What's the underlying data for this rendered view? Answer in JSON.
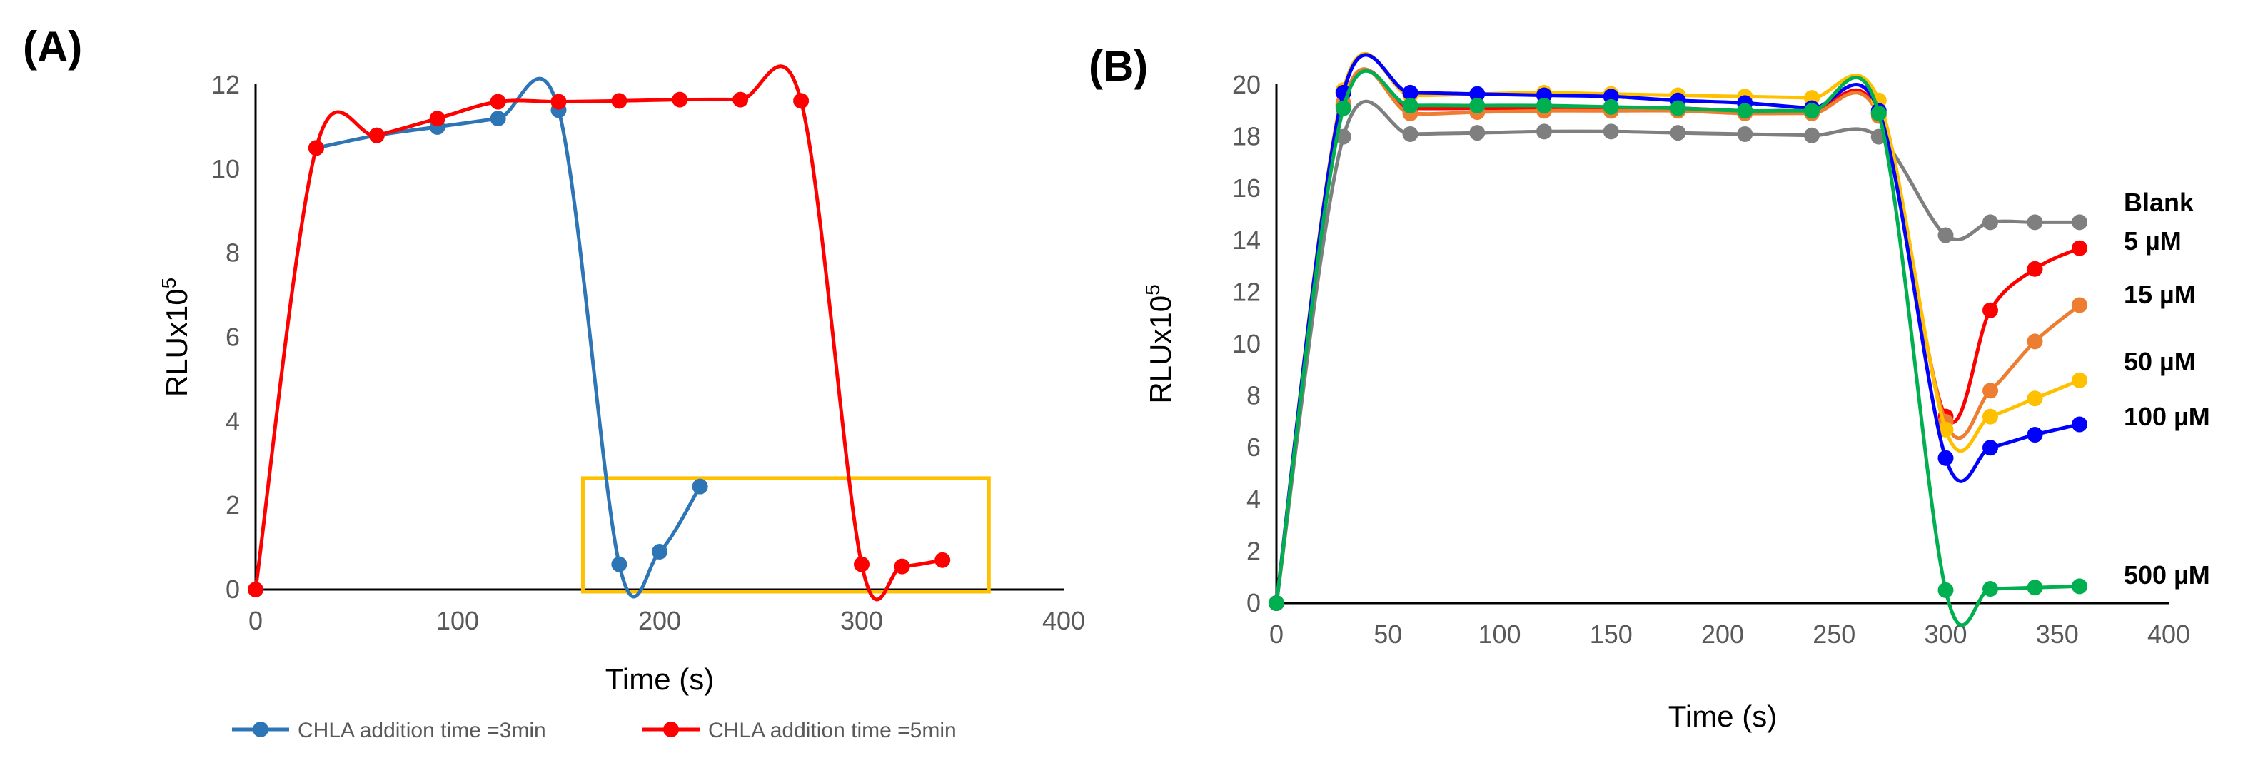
{
  "chart_data": [
    {
      "panel_label": "(A)",
      "type": "line",
      "xlabel": "Time (s)",
      "ylabel_base": "RLUx10",
      "ylabel_exp": "5",
      "xlim": [
        0,
        400
      ],
      "ylim": [
        0,
        12
      ],
      "xticks": [
        0,
        100,
        200,
        300,
        400
      ],
      "yticks": [
        0,
        2,
        4,
        6,
        8,
        10,
        12
      ],
      "legend_position": "bottom",
      "highlight_box": {
        "x": [
          162,
          363
        ],
        "y": [
          -0.05,
          2.65
        ],
        "color": "#FFC000"
      },
      "series": [
        {
          "name": "CHLA addition time =3min",
          "color": "#2E75B6",
          "x": [
            30,
            60,
            90,
            120,
            150,
            180,
            200,
            220
          ],
          "y": [
            10.5,
            10.8,
            11.0,
            11.2,
            11.4,
            0.6,
            0.9,
            2.45
          ]
        },
        {
          "name": "CHLA addition time =5min",
          "color": "#FF0000",
          "x": [
            0,
            30,
            60,
            90,
            120,
            150,
            180,
            210,
            240,
            270,
            300,
            320,
            340
          ],
          "y": [
            0,
            10.5,
            10.8,
            11.2,
            11.6,
            11.6,
            11.62,
            11.65,
            11.65,
            11.62,
            0.6,
            0.55,
            0.7
          ]
        }
      ]
    },
    {
      "panel_label": "(B)",
      "type": "line",
      "xlabel": "Time (s)",
      "ylabel_base": "RLUx10",
      "ylabel_exp": "5",
      "xlim": [
        0,
        400
      ],
      "ylim": [
        0,
        20
      ],
      "xticks": [
        0,
        50,
        100,
        150,
        200,
        250,
        300,
        350,
        400
      ],
      "yticks": [
        0,
        2,
        4,
        6,
        8,
        10,
        12,
        14,
        16,
        18,
        20
      ],
      "x": [
        0,
        30,
        60,
        90,
        120,
        150,
        180,
        210,
        240,
        270,
        300,
        320,
        340,
        360
      ],
      "series": [
        {
          "name": "Blank",
          "color": "#7F7F7F",
          "y": [
            0,
            18.0,
            18.1,
            18.15,
            18.2,
            18.2,
            18.15,
            18.1,
            18.05,
            18.0,
            14.2,
            14.7,
            14.7,
            14.7
          ]
        },
        {
          "name": "5 µM",
          "color": "#FF0000",
          "y": [
            0,
            19.2,
            19.1,
            19.1,
            19.1,
            19.1,
            19.1,
            19.0,
            19.0,
            18.9,
            7.2,
            11.3,
            12.9,
            13.7
          ]
        },
        {
          "name": "15 µM",
          "color": "#ED7D31",
          "y": [
            0,
            19.3,
            18.9,
            18.95,
            19.0,
            19.0,
            19.0,
            18.9,
            18.9,
            18.8,
            7.0,
            8.2,
            10.1,
            11.5
          ]
        },
        {
          "name": "50 µM",
          "color": "#FFC000",
          "y": [
            0,
            19.8,
            19.6,
            19.65,
            19.7,
            19.65,
            19.6,
            19.55,
            19.5,
            19.4,
            6.7,
            7.2,
            7.9,
            8.6
          ]
        },
        {
          "name": "100 µM",
          "color": "#0000FF",
          "y": [
            0,
            19.7,
            19.7,
            19.65,
            19.6,
            19.55,
            19.4,
            19.3,
            19.1,
            19.0,
            5.6,
            6.0,
            6.5,
            6.9
          ]
        },
        {
          "name": "500 µM",
          "color": "#00B050",
          "y": [
            0,
            19.1,
            19.2,
            19.2,
            19.2,
            19.15,
            19.1,
            19.0,
            19.0,
            18.9,
            0.5,
            0.55,
            0.6,
            0.65
          ]
        }
      ]
    }
  ]
}
